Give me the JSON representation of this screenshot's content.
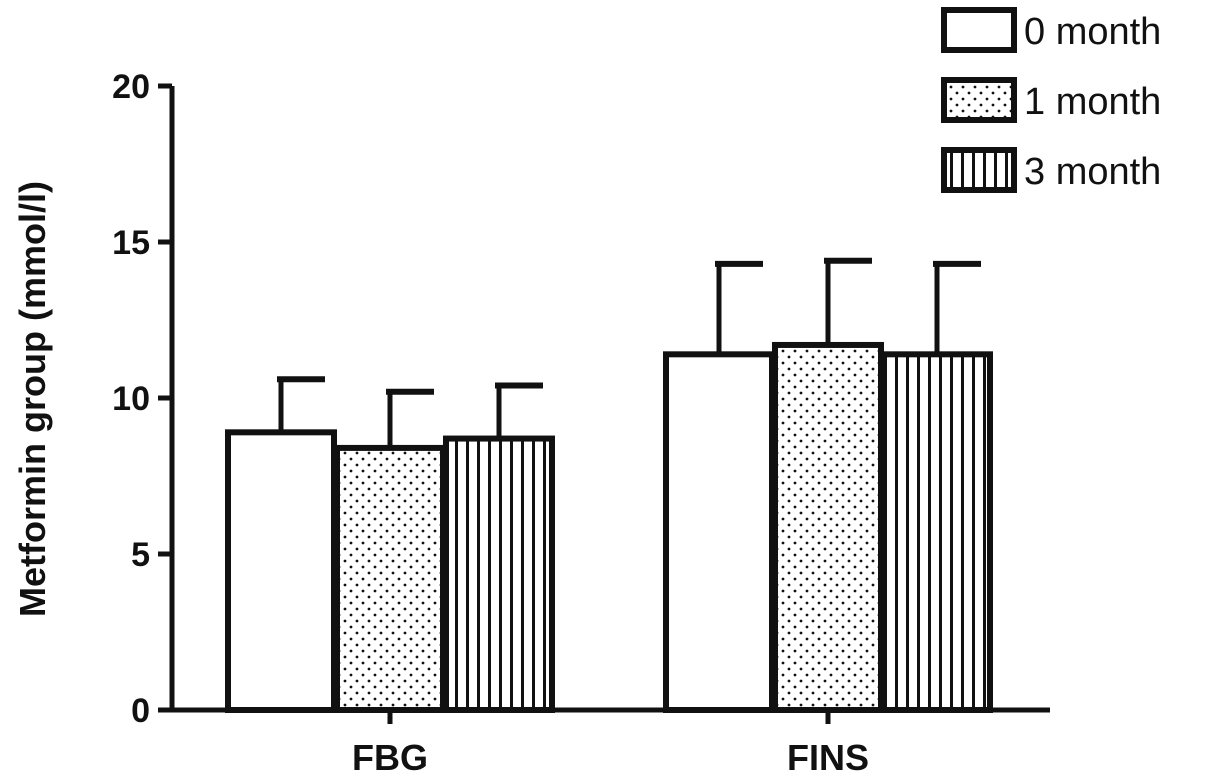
{
  "chart_data": {
    "type": "bar",
    "title": "",
    "xlabel": "",
    "ylabel": "Metformin group (mmol/l)",
    "ylim": [
      0,
      20
    ],
    "yticks": [
      0,
      5,
      10,
      15,
      20
    ],
    "categories": [
      "FBG",
      "FINS"
    ],
    "series": [
      {
        "name": "0 month",
        "pattern": "plain",
        "values": [
          8.9,
          11.4
        ],
        "error": [
          1.7,
          2.9
        ]
      },
      {
        "name": "1 month",
        "pattern": "dots",
        "values": [
          8.4,
          11.7
        ],
        "error": [
          1.8,
          2.7
        ]
      },
      {
        "name": "3 month",
        "pattern": "vertical-lines",
        "values": [
          8.7,
          11.4
        ],
        "error": [
          1.7,
          2.9
        ]
      }
    ],
    "legend_position": "top-right",
    "grid": false
  },
  "colors": {
    "stroke": "#111111",
    "fill": "#ffffff"
  }
}
